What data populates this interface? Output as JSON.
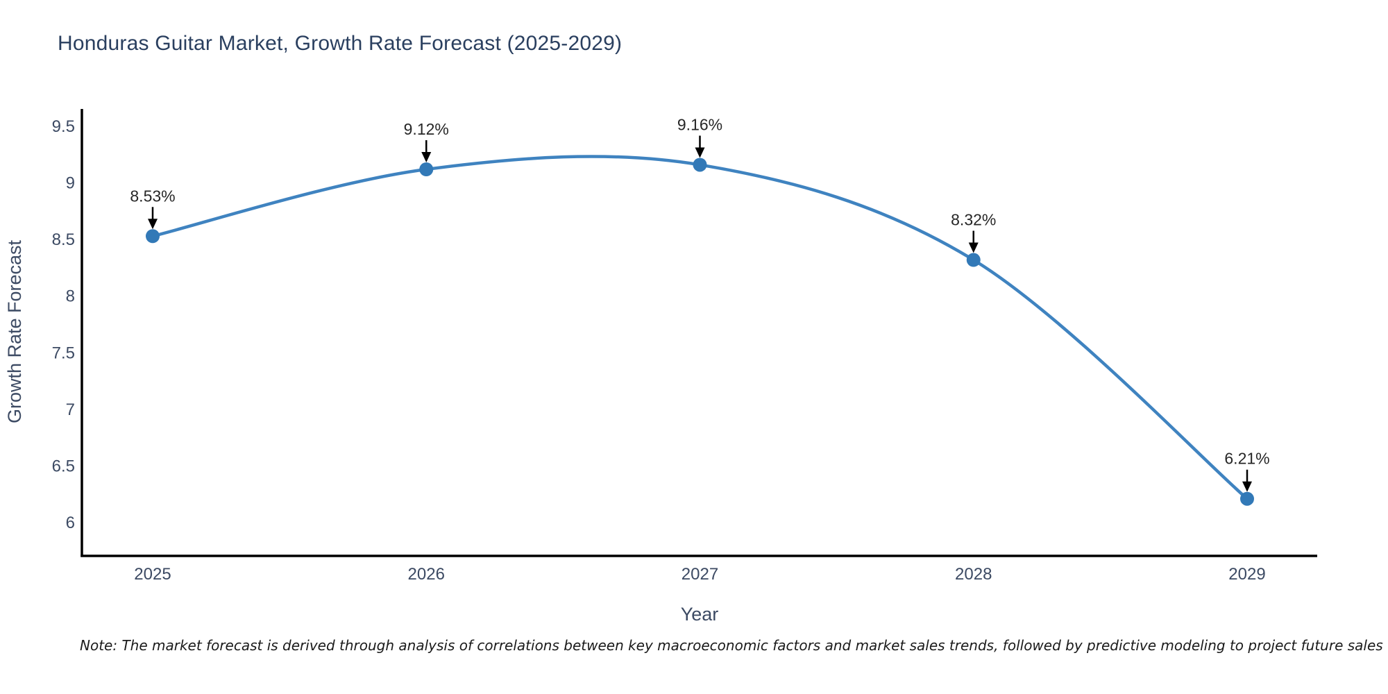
{
  "page": {
    "note": "Note: The market forecast is derived through analysis of correlations between key macroeconomic factors and market sales trends, followed by predictive modeling to project future sales"
  },
  "chart_data": {
    "type": "line",
    "title": "Honduras Guitar Market, Growth Rate Forecast (2025-2029)",
    "xlabel": "Year",
    "ylabel": "Growth Rate Forecast",
    "x": [
      2025,
      2026,
      2027,
      2028,
      2029
    ],
    "series": [
      {
        "name": "Growth Rate Forecast",
        "values": [
          8.53,
          9.12,
          9.16,
          8.32,
          6.21
        ]
      }
    ],
    "point_labels": [
      "8.53%",
      "9.12%",
      "9.16%",
      "8.32%",
      "6.21%"
    ],
    "xticks": [
      "2025",
      "2026",
      "2027",
      "2028",
      "2029"
    ],
    "yticks": [
      6,
      6.5,
      7,
      7.5,
      8,
      8.5,
      9,
      9.5
    ],
    "ylim": [
      5.71,
      9.66
    ],
    "grid": false,
    "legend_position": "none",
    "annotation_style": "label-with-down-arrow",
    "colors": {
      "line": "#3f83c0",
      "marker": "#3279b7",
      "axis": "#000000",
      "title_text": "#2a3f5f",
      "tick_text": "#3c4a63",
      "annotation_text": "#262626",
      "arrow": "#000000"
    }
  }
}
